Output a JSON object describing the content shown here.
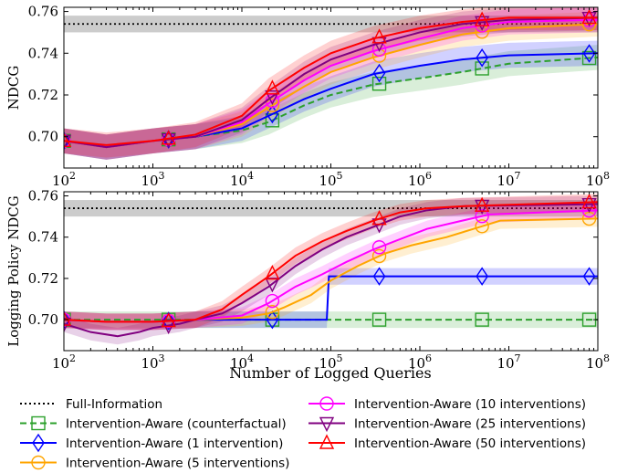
{
  "chart_data": [
    {
      "type": "line",
      "ylabel": "NDCG",
      "xscale": "log",
      "xlim": [
        100.0,
        100000000.0
      ],
      "ylim": [
        0.685,
        0.762
      ],
      "xticks": [
        "10^2",
        "10^3",
        "10^4",
        "10^5",
        "10^6",
        "10^7",
        "10^8"
      ],
      "yticks": [
        "0.70",
        "0.72",
        "0.74",
        "0.76"
      ],
      "reference": {
        "name": "Full-Information",
        "value": 0.754,
        "band": [
          0.75,
          0.758
        ]
      },
      "series": [
        {
          "name": "Intervention-Aware (counterfactual)",
          "color": "#2ca02c",
          "marker": "square",
          "dashed": true,
          "x": [
            100,
            300,
            1000,
            3000,
            10000,
            20000,
            50000,
            100000,
            300000,
            1000000,
            3000000,
            10000000,
            100000000
          ],
          "y": [
            0.698,
            0.695,
            0.698,
            0.7,
            0.703,
            0.707,
            0.715,
            0.72,
            0.725,
            0.728,
            0.731,
            0.735,
            0.738
          ]
        },
        {
          "name": "Intervention-Aware (1 intervention)",
          "color": "#0000ff",
          "marker": "diamond",
          "dashed": false,
          "x": [
            100,
            300,
            1000,
            3000,
            10000,
            20000,
            50000,
            100000,
            300000,
            1000000,
            3000000,
            10000000,
            100000000
          ],
          "y": [
            0.698,
            0.695,
            0.698,
            0.7,
            0.704,
            0.71,
            0.718,
            0.723,
            0.73,
            0.734,
            0.737,
            0.739,
            0.74
          ]
        },
        {
          "name": "Intervention-Aware (5 interventions)",
          "color": "#ffa500",
          "marker": "circle",
          "dashed": false,
          "x": [
            100,
            300,
            1000,
            3000,
            10000,
            20000,
            50000,
            100000,
            300000,
            1000000,
            3000000,
            10000000,
            100000000
          ],
          "y": [
            0.698,
            0.695,
            0.698,
            0.7,
            0.706,
            0.714,
            0.724,
            0.731,
            0.738,
            0.744,
            0.749,
            0.752,
            0.754
          ]
        },
        {
          "name": "Intervention-Aware (10 interventions)",
          "color": "#ff00ff",
          "marker": "circle",
          "dashed": false,
          "x": [
            100,
            300,
            1000,
            3000,
            10000,
            20000,
            50000,
            100000,
            300000,
            1000000,
            3000000,
            10000000,
            100000000
          ],
          "y": [
            0.698,
            0.695,
            0.698,
            0.7,
            0.707,
            0.716,
            0.727,
            0.734,
            0.741,
            0.747,
            0.752,
            0.755,
            0.756
          ]
        },
        {
          "name": "Intervention-Aware (25 interventions)",
          "color": "#800080",
          "marker": "triangle-down",
          "dashed": false,
          "x": [
            100,
            300,
            1000,
            3000,
            10000,
            20000,
            50000,
            100000,
            300000,
            1000000,
            3000000,
            10000000,
            100000000
          ],
          "y": [
            0.698,
            0.695,
            0.698,
            0.7,
            0.708,
            0.718,
            0.73,
            0.737,
            0.744,
            0.75,
            0.754,
            0.756,
            0.757
          ]
        },
        {
          "name": "Intervention-Aware (50 interventions)",
          "color": "#ff0000",
          "marker": "triangle-up",
          "dashed": false,
          "x": [
            100,
            300,
            1000,
            3000,
            10000,
            20000,
            50000,
            100000,
            300000,
            1000000,
            3000000,
            10000000,
            100000000
          ],
          "y": [
            0.698,
            0.696,
            0.698,
            0.701,
            0.71,
            0.722,
            0.733,
            0.74,
            0.747,
            0.752,
            0.755,
            0.757,
            0.757
          ]
        }
      ]
    },
    {
      "type": "line",
      "ylabel": "Logging Policy NDCG",
      "xlabel": "Number of Logged Queries",
      "xscale": "log",
      "xlim": [
        100.0,
        100000000.0
      ],
      "ylim": [
        0.685,
        0.762
      ],
      "xticks": [
        "10^2",
        "10^3",
        "10^4",
        "10^5",
        "10^6",
        "10^7",
        "10^8"
      ],
      "yticks": [
        "0.70",
        "0.72",
        "0.74",
        "0.76"
      ],
      "reference": {
        "name": "Full-Information",
        "value": 0.754,
        "band": [
          0.75,
          0.758
        ]
      },
      "series": [
        {
          "name": "Intervention-Aware (counterfactual)",
          "color": "#2ca02c",
          "marker": "square",
          "dashed": true,
          "x": [
            100,
            300,
            1000,
            3000,
            100000000
          ],
          "y": [
            0.7,
            0.7,
            0.7,
            0.7,
            0.7
          ]
        },
        {
          "name": "Intervention-Aware (1 intervention)",
          "color": "#0000ff",
          "marker": "diamond",
          "dashed": false,
          "x": [
            100,
            300,
            1000,
            3000,
            10000,
            20000,
            50000,
            90000,
            95000,
            100000000
          ],
          "y": [
            0.7,
            0.699,
            0.699,
            0.7,
            0.7,
            0.7,
            0.7,
            0.7,
            0.721,
            0.721
          ]
        },
        {
          "name": "Intervention-Aware (5 interventions)",
          "color": "#ffa500",
          "marker": "circle",
          "dashed": false,
          "x": [
            100,
            300,
            1000,
            3000,
            10000,
            20000,
            30000,
            60000,
            100000,
            200000,
            400000,
            800000,
            2000000,
            4000000,
            8000000,
            100000000
          ],
          "y": [
            0.7,
            0.699,
            0.699,
            0.7,
            0.701,
            0.703,
            0.706,
            0.712,
            0.719,
            0.726,
            0.732,
            0.736,
            0.74,
            0.744,
            0.748,
            0.749
          ]
        },
        {
          "name": "Intervention-Aware (10 interventions)",
          "color": "#ff00ff",
          "marker": "circle",
          "dashed": false,
          "x": [
            100,
            300,
            1000,
            3000,
            10000,
            20000,
            40000,
            80000,
            150000,
            300000,
            600000,
            1200000,
            3000000,
            6000000,
            100000000
          ],
          "y": [
            0.7,
            0.699,
            0.699,
            0.7,
            0.702,
            0.708,
            0.716,
            0.722,
            0.728,
            0.734,
            0.739,
            0.744,
            0.748,
            0.751,
            0.753
          ]
        },
        {
          "name": "Intervention-Aware (25 interventions)",
          "color": "#800080",
          "marker": "triangle-down",
          "dashed": false,
          "x": [
            100,
            200,
            400,
            700,
            1000,
            2000,
            3000,
            6000,
            10000,
            20000,
            40000,
            80000,
            150000,
            300000,
            600000,
            1200000,
            3000000,
            100000000
          ],
          "y": [
            0.698,
            0.694,
            0.692,
            0.694,
            0.696,
            0.698,
            0.7,
            0.703,
            0.708,
            0.716,
            0.726,
            0.734,
            0.74,
            0.745,
            0.75,
            0.753,
            0.755,
            0.756
          ]
        },
        {
          "name": "Intervention-Aware (50 interventions)",
          "color": "#ff0000",
          "marker": "triangle-up",
          "dashed": false,
          "x": [
            100,
            300,
            1000,
            3000,
            6000,
            10000,
            20000,
            40000,
            80000,
            150000,
            300000,
            600000,
            1200000,
            3000000,
            100000000
          ],
          "y": [
            0.7,
            0.699,
            0.699,
            0.7,
            0.705,
            0.712,
            0.721,
            0.731,
            0.738,
            0.743,
            0.748,
            0.752,
            0.754,
            0.755,
            0.757
          ]
        }
      ]
    }
  ],
  "legend": [
    {
      "label": "Full-Information",
      "color": "#000000",
      "marker": "none",
      "dashed": "dotted"
    },
    {
      "label": "Intervention-Aware (counterfactual)",
      "color": "#2ca02c",
      "marker": "square",
      "dashed": "dashed"
    },
    {
      "label": "Intervention-Aware (1 intervention)",
      "color": "#0000ff",
      "marker": "diamond",
      "dashed": "solid"
    },
    {
      "label": "Intervention-Aware (5 interventions)",
      "color": "#ffa500",
      "marker": "circle",
      "dashed": "solid"
    },
    {
      "label": "Intervention-Aware (10 interventions)",
      "color": "#ff00ff",
      "marker": "circle",
      "dashed": "solid"
    },
    {
      "label": "Intervention-Aware (25 interventions)",
      "color": "#800080",
      "marker": "triangle-down",
      "dashed": "solid"
    },
    {
      "label": "Intervention-Aware (50 interventions)",
      "color": "#ff0000",
      "marker": "triangle-up",
      "dashed": "solid"
    }
  ]
}
